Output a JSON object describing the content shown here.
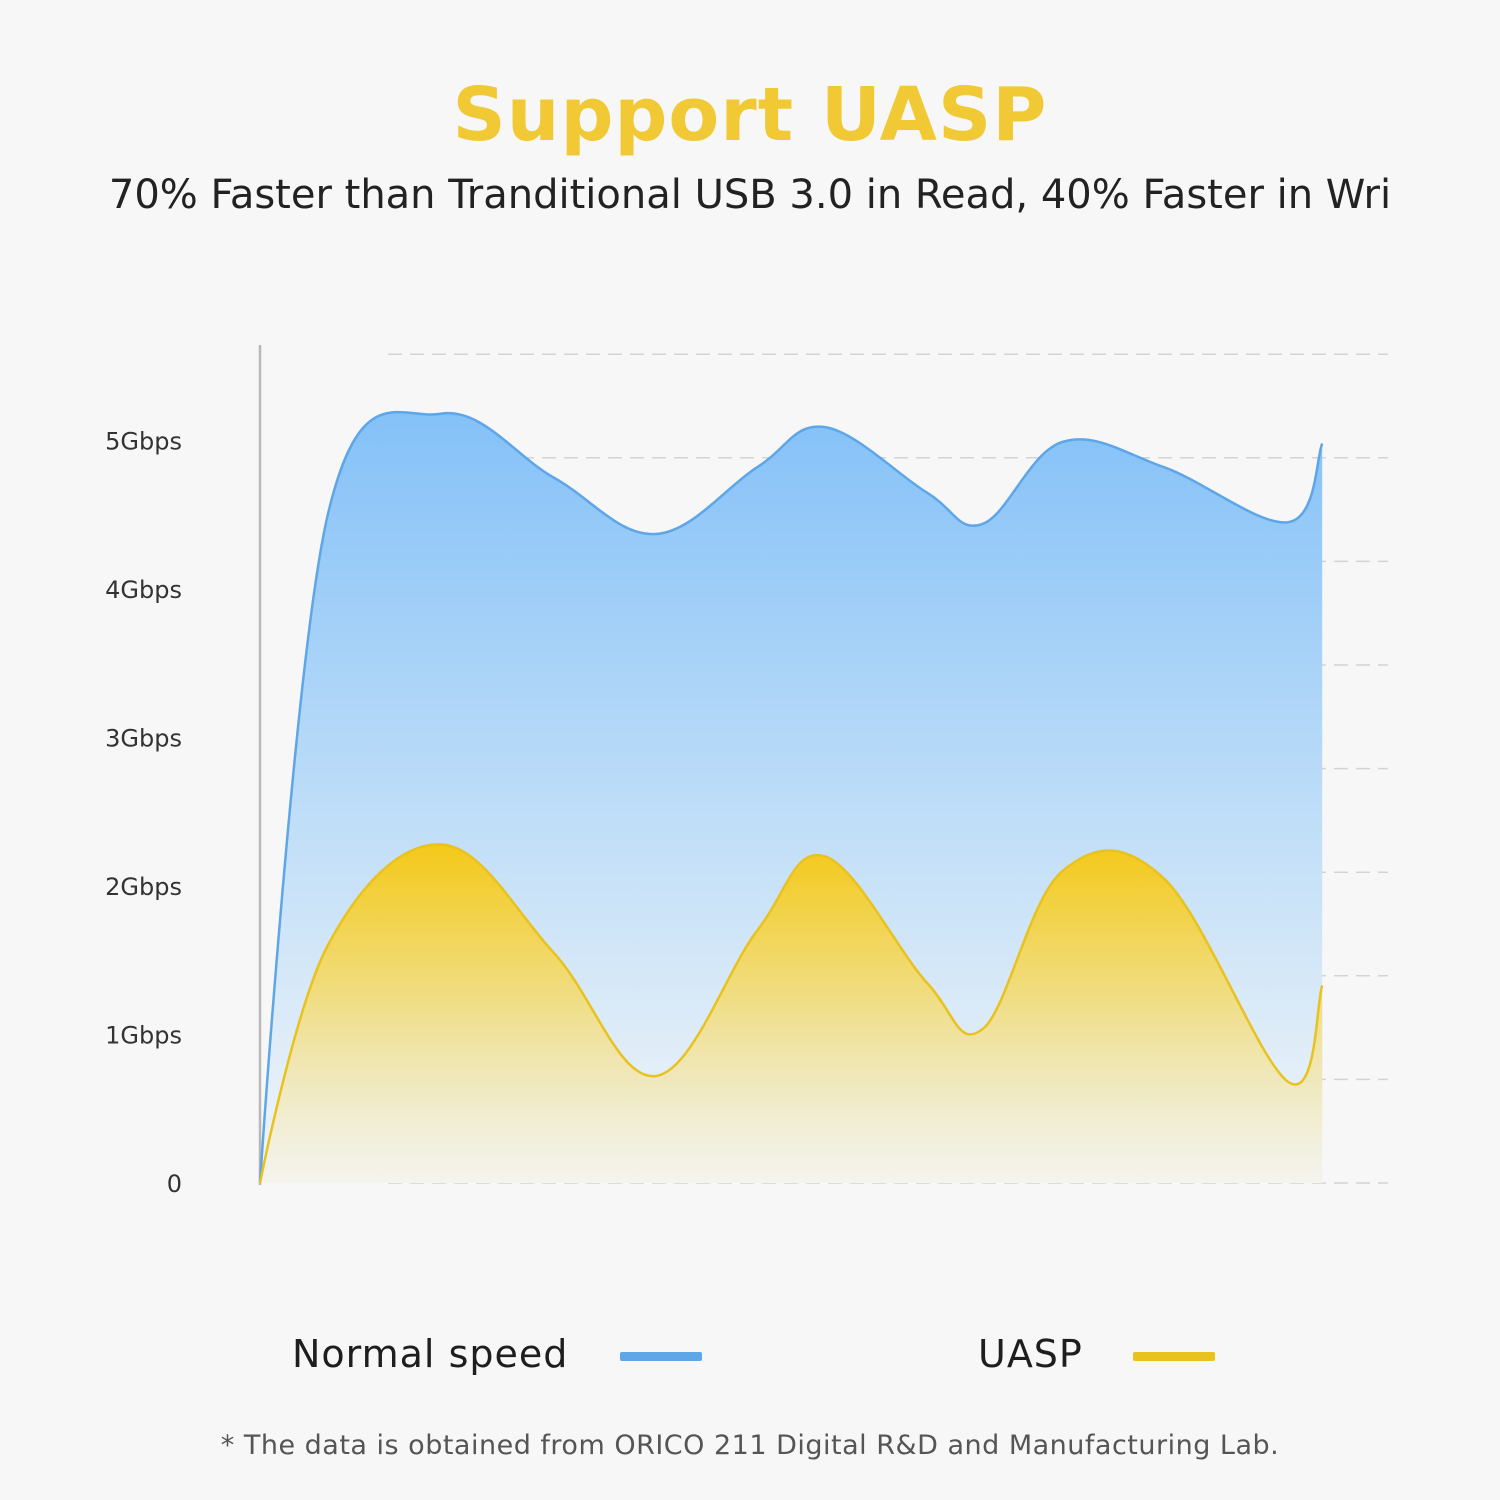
{
  "header": {
    "title": "Support UASP",
    "subtitle": "70% Faster than Tranditional USB 3.0 in Read, 40% Faster in Wri"
  },
  "legend": [
    {
      "label": "Normal speed",
      "color": "#5ea6e8"
    },
    {
      "label": "UASP",
      "color": "#e8c21f"
    }
  ],
  "footnote": "* The data is obtained from ORICO 211 Digital R&D and Manufacturing Lab.",
  "chart_data": {
    "type": "area",
    "title": "Support UASP",
    "ylabel": "",
    "xlabel": "",
    "ylim": [
      0,
      5.6
    ],
    "yticks": [
      {
        "value": 0,
        "label": "0"
      },
      {
        "value": 1,
        "label": "1Gbps"
      },
      {
        "value": 2,
        "label": "2Gbps"
      },
      {
        "value": 3,
        "label": "3Gbps"
      },
      {
        "value": 4,
        "label": "4Gbps"
      },
      {
        "value": 5,
        "label": "5Gbps"
      }
    ],
    "grid": true,
    "x": [
      0,
      0.06,
      0.16,
      0.26,
      0.35,
      0.44,
      0.5,
      0.59,
      0.64,
      0.71,
      0.8,
      0.91,
      0.94
    ],
    "series": [
      {
        "name": "Normal speed",
        "color": "#5ea6e8",
        "values": [
          0,
          4.5,
          5.18,
          4.75,
          4.37,
          4.82,
          5.09,
          4.65,
          4.44,
          4.99,
          4.82,
          4.45,
          4.98
        ]
      },
      {
        "name": "UASP",
        "color": "#e8c21f",
        "values": [
          0,
          1.6,
          2.28,
          1.55,
          0.72,
          1.7,
          2.2,
          1.35,
          1.04,
          2.1,
          2.05,
          0.68,
          1.33
        ]
      }
    ]
  }
}
